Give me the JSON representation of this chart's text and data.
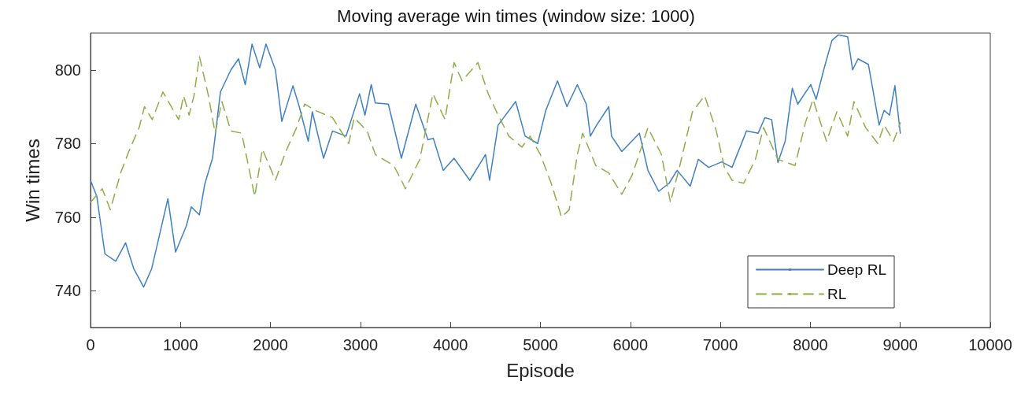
{
  "chart_data": {
    "type": "line",
    "title": "Moving average win times (window size: 1000)",
    "xlabel": "Episode",
    "ylabel": "Win times",
    "xlim": [
      0,
      10000
    ],
    "xticks": [
      0,
      1000,
      2000,
      3000,
      4000,
      5000,
      6000,
      7000,
      8000,
      9000,
      10000
    ],
    "ylim": [
      730,
      810
    ],
    "yticks": [
      740,
      760,
      780,
      800
    ],
    "grid": false,
    "legend": "bottom right",
    "marker": "none",
    "series": [
      {
        "name": "Deep RL",
        "color": "#3f7fc4",
        "line_style": "solid",
        "x": [
          0,
          70,
          160,
          280,
          390,
          480,
          590,
          680,
          860,
          945,
          1065,
          1120,
          1210,
          1270,
          1356,
          1444,
          1560,
          1645,
          1720,
          1795,
          1880,
          1950,
          2055,
          2126,
          2250,
          2320,
          2420,
          2465,
          2590,
          2690,
          2840,
          2990,
          3050,
          3120,
          3165,
          3310,
          3455,
          3615,
          3750,
          3810,
          3920,
          4040,
          4215,
          4390,
          4435,
          4530,
          4725,
          4830,
          4970,
          5060,
          5190,
          5295,
          5410,
          5510,
          5555,
          5625,
          5760,
          5790,
          5905,
          6100,
          6195,
          6315,
          6430,
          6520,
          6665,
          6755,
          6870,
          7015,
          7130,
          7290,
          7420,
          7495,
          7570,
          7640,
          7720,
          7800,
          7860,
          8005,
          8065,
          8155,
          8240,
          8310,
          8415,
          8470,
          8530,
          8645,
          8765,
          8820,
          8880,
          8940,
          9000
        ],
        "values": [
          770,
          765.6,
          750,
          748,
          753,
          746,
          741,
          746,
          765,
          750.5,
          757.6,
          762.8,
          760.6,
          769,
          776,
          794,
          800,
          803,
          796,
          807,
          800.6,
          807,
          800,
          786,
          795.7,
          790,
          780.6,
          788.6,
          776,
          783.4,
          782,
          793.5,
          787.7,
          796,
          791,
          790.7,
          776,
          790.7,
          781,
          781.4,
          772.7,
          776,
          770,
          777,
          770,
          785,
          791.4,
          782,
          780,
          789,
          797,
          790,
          796,
          790.7,
          782,
          785,
          790,
          782,
          777.8,
          782.8,
          772.7,
          767,
          769.2,
          772.7,
          768.4,
          775.7,
          773.5,
          775,
          773.5,
          783.4,
          782.8,
          787,
          786.5,
          774.8,
          780.6,
          795,
          790.7,
          796,
          792,
          800.6,
          808,
          809.5,
          809,
          800,
          803,
          801.5,
          785,
          789,
          787.7,
          795.7,
          782.8
        ]
      },
      {
        "name": "RL",
        "color": "#8cae48",
        "line_style": "dashed",
        "x": [
          0,
          130,
          220,
          335,
          425,
          540,
          600,
          685,
          805,
          980,
          1035,
          1095,
          1150,
          1210,
          1310,
          1385,
          1460,
          1560,
          1680,
          1825,
          1910,
          2055,
          2170,
          2290,
          2380,
          2495,
          2690,
          2870,
          2930,
          3075,
          3165,
          3370,
          3455,
          3500,
          3660,
          3805,
          3940,
          4040,
          4130,
          4305,
          4420,
          4530,
          4650,
          4795,
          4885,
          5000,
          5120,
          5235,
          5320,
          5410,
          5470,
          5615,
          5760,
          5905,
          6020,
          6195,
          6345,
          6445,
          6545,
          6690,
          6825,
          6955,
          7045,
          7130,
          7260,
          7390,
          7480,
          7640,
          7830,
          7945,
          8030,
          8180,
          8295,
          8415,
          8485,
          8615,
          8750,
          8820,
          8925,
          9000
        ],
        "values": [
          764,
          767.7,
          762,
          772,
          777.8,
          784.3,
          790,
          786.5,
          794,
          786.5,
          793,
          787.7,
          793,
          803.7,
          793,
          782.8,
          791.4,
          783.4,
          782.8,
          765.6,
          778.5,
          770,
          777.8,
          784.3,
          790.7,
          789,
          787,
          780,
          787,
          783.4,
          777,
          774,
          770,
          767.7,
          775.7,
          793.5,
          786.5,
          802,
          797,
          802,
          793.5,
          787.7,
          782,
          779,
          782,
          777,
          769.2,
          760,
          762,
          777,
          782.8,
          774,
          772,
          766.2,
          771.4,
          784.3,
          777,
          764,
          773.5,
          788.6,
          793,
          783.4,
          773.5,
          770,
          769.2,
          775.7,
          784.3,
          775.7,
          774,
          785.6,
          792,
          780.6,
          788.6,
          782,
          791.4,
          784.3,
          780,
          785,
          780.6,
          785.6
        ]
      }
    ]
  }
}
